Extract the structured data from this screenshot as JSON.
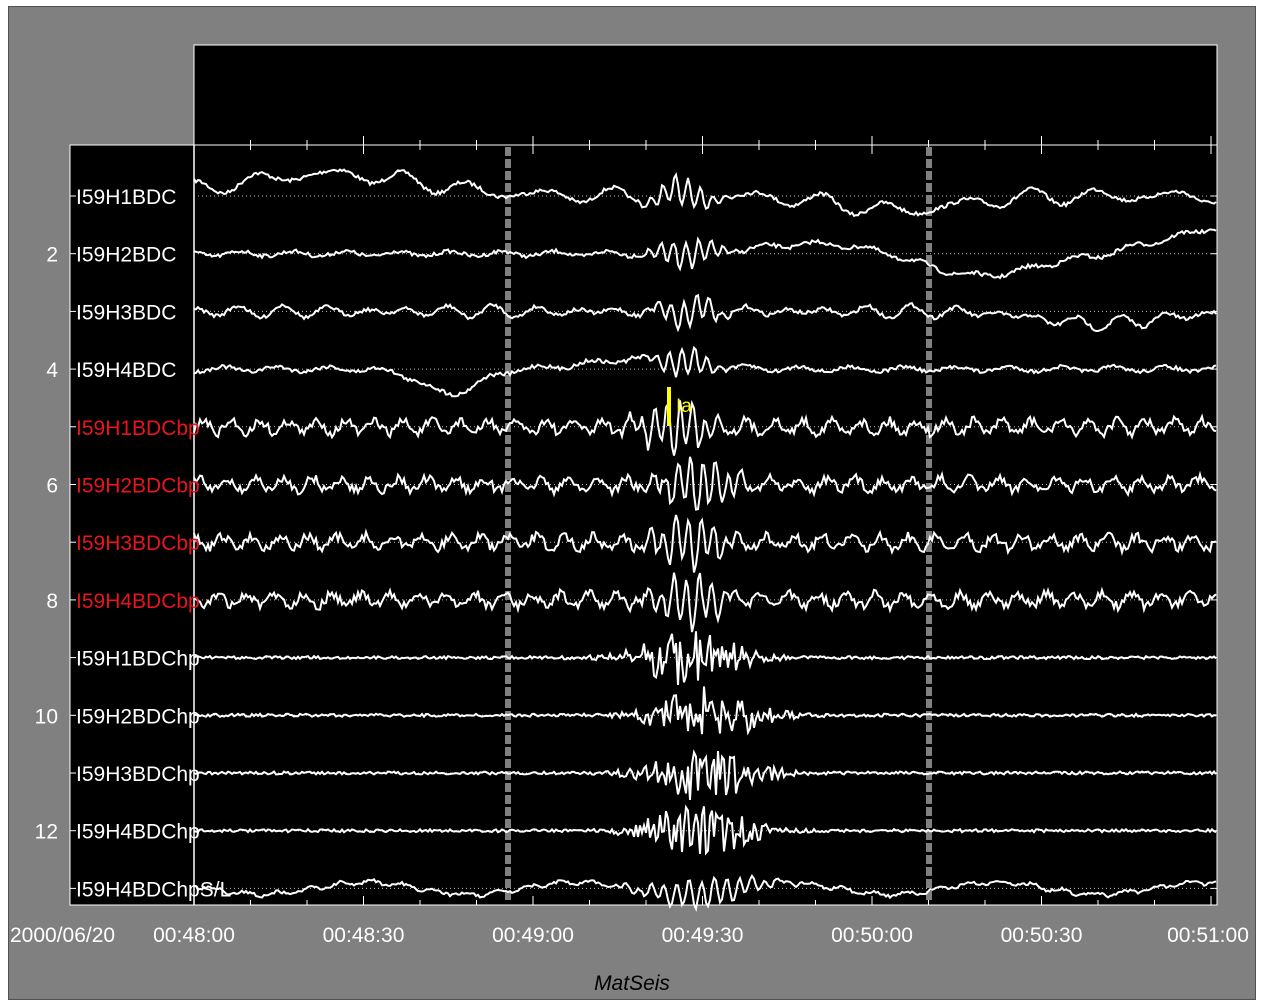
{
  "app": {
    "name": "MatSeis"
  },
  "date_label": "2000/06/20",
  "x_axis": {
    "ticks": [
      "00:48:00",
      "00:48:30",
      "00:49:00",
      "00:49:30",
      "00:50:00",
      "00:50:30",
      "00:51:00"
    ],
    "start_seconds": 0,
    "end_seconds": 180
  },
  "y_axis": {
    "ticks": [
      "2",
      "4",
      "6",
      "8",
      "10",
      "12"
    ]
  },
  "channels": [
    {
      "label": "I59H1BDC",
      "color": "#ffffff",
      "kind": "raw"
    },
    {
      "label": "I59H2BDC",
      "color": "#ffffff",
      "kind": "raw"
    },
    {
      "label": "I59H3BDC",
      "color": "#ffffff",
      "kind": "raw"
    },
    {
      "label": "I59H4BDC",
      "color": "#ffffff",
      "kind": "raw"
    },
    {
      "label": "I59H1BDCbp",
      "color": "#e8141e",
      "kind": "bp"
    },
    {
      "label": "I59H2BDCbp",
      "color": "#e8141e",
      "kind": "bp"
    },
    {
      "label": "I59H3BDCbp",
      "color": "#e8141e",
      "kind": "bp"
    },
    {
      "label": "I59H4BDCbp",
      "color": "#e8141e",
      "kind": "bp"
    },
    {
      "label": "I59H1BDChp",
      "color": "#ffffff",
      "kind": "hp"
    },
    {
      "label": "I59H2BDChp",
      "color": "#ffffff",
      "kind": "hp"
    },
    {
      "label": "I59H3BDChp",
      "color": "#ffffff",
      "kind": "hp"
    },
    {
      "label": "I59H4BDChp",
      "color": "#ffffff",
      "kind": "hp"
    },
    {
      "label": "I59H4BDChpS/L",
      "color": "#ffffff",
      "kind": "sl"
    }
  ],
  "pick": {
    "label": "Ia",
    "channel": 5,
    "color": "#ffff00"
  },
  "colors": {
    "plot_bg": "#000000",
    "frame": "#808080",
    "trace": "#ffffff",
    "marker": "#808080"
  }
}
